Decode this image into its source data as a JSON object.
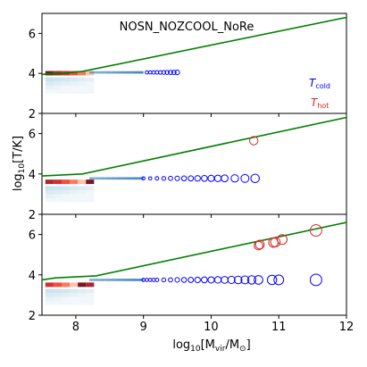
{
  "figure": {
    "title": "NOSN_NOZCOOL_NoRe",
    "xlabel_main": "log",
    "xlabel_sub": "10",
    "xlabel_rest": "[M",
    "xlabel_vir": "vir",
    "xlabel_slash": "/M",
    "xlabel_sun": "⊙",
    "xlabel_close": "]",
    "ylabel_main": "log",
    "ylabel_sub": "10",
    "ylabel_rest": "[T/K]",
    "legend_cold_T": "T",
    "legend_cold_sub": "cold",
    "legend_hot_T": "T",
    "legend_hot_sub": "hot",
    "cold_color": "#0000ff",
    "hot_color": "#d62728",
    "line_color": "#008000"
  },
  "chart_data": [
    {
      "type": "scatter",
      "panel": "top",
      "title": "NOSN_NOZCOOL_NoRe",
      "xlim": [
        7.5,
        12
      ],
      "ylim": [
        2,
        7
      ],
      "yticks": [
        2,
        4,
        6
      ],
      "line": {
        "name": "",
        "x": [
          7.5,
          7.8,
          8.1,
          12
        ],
        "y": [
          3.95,
          4.0,
          4.1,
          6.8
        ]
      },
      "series": [
        {
          "name": "T_cold",
          "color": "#0000ff",
          "points": [
            [
              9.05,
              4.05
            ],
            [
              9.1,
              4.05
            ],
            [
              9.15,
              4.05
            ],
            [
              9.2,
              4.05
            ],
            [
              9.25,
              4.05
            ],
            [
              9.3,
              4.05
            ],
            [
              9.35,
              4.05
            ],
            [
              9.4,
              4.05
            ],
            [
              9.45,
              4.05
            ],
            [
              9.5,
              4.05
            ]
          ]
        },
        {
          "name": "T_hot",
          "color": "#d62728",
          "points": []
        }
      ]
    },
    {
      "type": "scatter",
      "panel": "middle",
      "xlim": [
        7.5,
        12
      ],
      "ylim": [
        2,
        7
      ],
      "yticks": [
        2,
        4,
        6
      ],
      "line": {
        "name": "",
        "x": [
          7.5,
          8.1,
          12
        ],
        "y": [
          3.9,
          4.0,
          6.8
        ]
      },
      "series": [
        {
          "name": "T_cold",
          "color": "#0000ff",
          "points": [
            [
              9.0,
              3.78
            ],
            [
              9.1,
              3.78
            ],
            [
              9.2,
              3.78
            ],
            [
              9.3,
              3.78
            ],
            [
              9.4,
              3.78
            ],
            [
              9.5,
              3.78
            ],
            [
              9.6,
              3.78
            ],
            [
              9.7,
              3.78
            ],
            [
              9.8,
              3.78
            ],
            [
              9.9,
              3.78
            ],
            [
              10.0,
              3.78
            ],
            [
              10.1,
              3.78
            ],
            [
              10.2,
              3.78
            ],
            [
              10.35,
              3.78
            ],
            [
              10.5,
              3.78
            ],
            [
              10.65,
              3.78
            ]
          ]
        },
        {
          "name": "T_hot",
          "color": "#d62728",
          "points": [
            [
              10.63,
              5.65
            ]
          ]
        }
      ]
    },
    {
      "type": "scatter",
      "panel": "bottom",
      "xlim": [
        7.5,
        12
      ],
      "ylim": [
        2,
        7
      ],
      "yticks": [
        2,
        4,
        6
      ],
      "xticks": [
        8,
        9,
        10,
        11,
        12
      ],
      "line": {
        "name": "",
        "x": [
          7.5,
          7.7,
          8.3,
          12
        ],
        "y": [
          3.75,
          3.85,
          3.95,
          6.6
        ]
      },
      "series": [
        {
          "name": "T_cold",
          "color": "#0000ff",
          "points": [
            [
              9.0,
              3.75
            ],
            [
              9.05,
              3.75
            ],
            [
              9.1,
              3.75
            ],
            [
              9.15,
              3.75
            ],
            [
              9.2,
              3.75
            ],
            [
              9.3,
              3.75
            ],
            [
              9.4,
              3.75
            ],
            [
              9.5,
              3.75
            ],
            [
              9.6,
              3.75
            ],
            [
              9.7,
              3.75
            ],
            [
              9.8,
              3.75
            ],
            [
              9.9,
              3.75
            ],
            [
              10.0,
              3.75
            ],
            [
              10.1,
              3.75
            ],
            [
              10.2,
              3.75
            ],
            [
              10.3,
              3.75
            ],
            [
              10.4,
              3.75
            ],
            [
              10.5,
              3.75
            ],
            [
              10.6,
              3.75
            ],
            [
              10.7,
              3.75
            ],
            [
              10.9,
              3.75
            ],
            [
              11.0,
              3.75
            ],
            [
              11.55,
              3.75
            ]
          ]
        },
        {
          "name": "T_hot",
          "color": "#d62728",
          "points": [
            [
              10.7,
              5.45
            ],
            [
              10.72,
              5.5
            ],
            [
              10.92,
              5.6
            ],
            [
              10.95,
              5.62
            ],
            [
              11.05,
              5.75
            ],
            [
              11.55,
              6.2
            ]
          ]
        }
      ]
    }
  ]
}
